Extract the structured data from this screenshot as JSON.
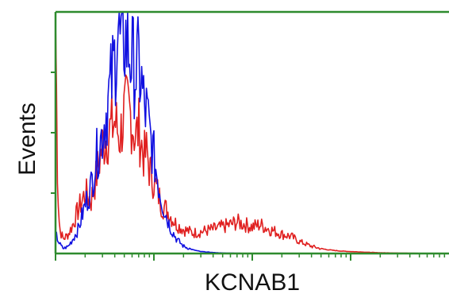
{
  "chart_data": {
    "type": "line",
    "title": "",
    "xlabel": "KCNAB1",
    "ylabel": "Events",
    "x_scale": "log",
    "xlim": [
      1,
      10000
    ],
    "ylim": [
      0,
      1
    ],
    "grid": false,
    "legend": "none",
    "colors": {
      "frame": "#2e8b2e",
      "series_red": "#e02020",
      "series_blue": "#1010e0"
    },
    "series": [
      {
        "color": "#e02020",
        "x": [
          1.0,
          1.05,
          1.1,
          1.2,
          1.35,
          1.5,
          1.7,
          2.0,
          2.3,
          2.6,
          3.0,
          3.5,
          4.0,
          4.5,
          5.0,
          5.5,
          6.0,
          6.5,
          7.0,
          7.5,
          8.0,
          8.5,
          9.0,
          9.5,
          10.0,
          11.0,
          12.0,
          13.5,
          15.0,
          17.0,
          20.0,
          25.0,
          30.0,
          40.0,
          50.0,
          60.0,
          70.0,
          85.0,
          100.0,
          120.0,
          150.0,
          200.0,
          250.0,
          300.0,
          400.0,
          500.0,
          600.0,
          800.0,
          1000.0,
          1500.0,
          2000.0,
          4000.0,
          10000.0
        ],
        "values": [
          0.98,
          0.3,
          0.1,
          0.06,
          0.08,
          0.12,
          0.18,
          0.25,
          0.22,
          0.32,
          0.45,
          0.5,
          0.55,
          0.48,
          0.58,
          0.6,
          0.55,
          0.48,
          0.52,
          0.45,
          0.4,
          0.42,
          0.35,
          0.32,
          0.3,
          0.25,
          0.2,
          0.18,
          0.15,
          0.12,
          0.1,
          0.085,
          0.09,
          0.1,
          0.11,
          0.12,
          0.13,
          0.12,
          0.11,
          0.12,
          0.1,
          0.08,
          0.07,
          0.05,
          0.03,
          0.02,
          0.015,
          0.01,
          0.008,
          0.005,
          0.003,
          0.001,
          0.0
        ]
      },
      {
        "color": "#1010e0",
        "x": [
          1.0,
          1.1,
          1.2,
          1.35,
          1.5,
          1.7,
          2.0,
          2.3,
          2.6,
          3.0,
          3.5,
          4.0,
          4.3,
          4.6,
          5.0,
          5.5,
          6.0,
          6.5,
          7.0,
          7.5,
          8.0,
          8.5,
          9.0,
          9.5,
          10.0,
          11.0,
          12.0,
          13.5,
          15.0,
          17.0,
          20.0,
          25.0,
          30.0,
          40.0,
          50.0,
          70.0,
          100.0,
          200.0,
          1000.0,
          10000.0
        ],
        "values": [
          0.08,
          0.04,
          0.02,
          0.03,
          0.06,
          0.1,
          0.2,
          0.28,
          0.4,
          0.5,
          0.65,
          0.8,
          0.95,
          0.85,
          0.9,
          0.85,
          0.8,
          0.75,
          0.78,
          0.7,
          0.6,
          0.58,
          0.5,
          0.45,
          0.4,
          0.3,
          0.22,
          0.15,
          0.1,
          0.06,
          0.03,
          0.015,
          0.008,
          0.004,
          0.002,
          0.001,
          0.0,
          0.0,
          0.0,
          0.0
        ]
      }
    ]
  }
}
